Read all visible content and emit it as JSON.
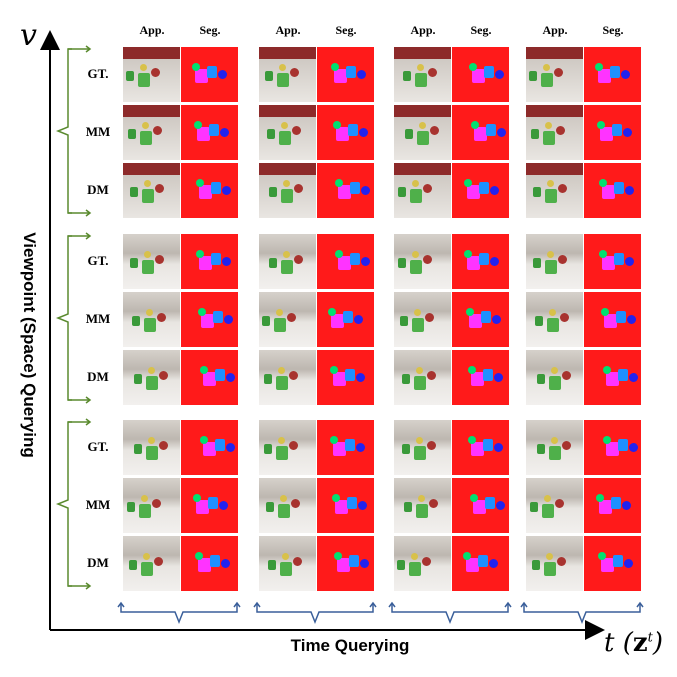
{
  "axes": {
    "y_symbol": "v",
    "y_title": "Viewpoint (Space) Querying",
    "x_title": "Time Querying",
    "x_symbol": {
      "t": "t",
      "z": "z",
      "sup": "t"
    }
  },
  "columns": [
    {
      "app": "App.",
      "seg": "Seg."
    },
    {
      "app": "App.",
      "seg": "Seg."
    },
    {
      "app": "App.",
      "seg": "Seg."
    },
    {
      "app": "App.",
      "seg": "Seg."
    }
  ],
  "row_labels": [
    "GT.",
    "MM",
    "DM"
  ],
  "colors": {
    "arrow_green": "#5a8a2e",
    "brace_blue": "#3a5f9a",
    "segmentation_background": "#ff1a1a",
    "wall_red": "#8d2a2a"
  }
}
